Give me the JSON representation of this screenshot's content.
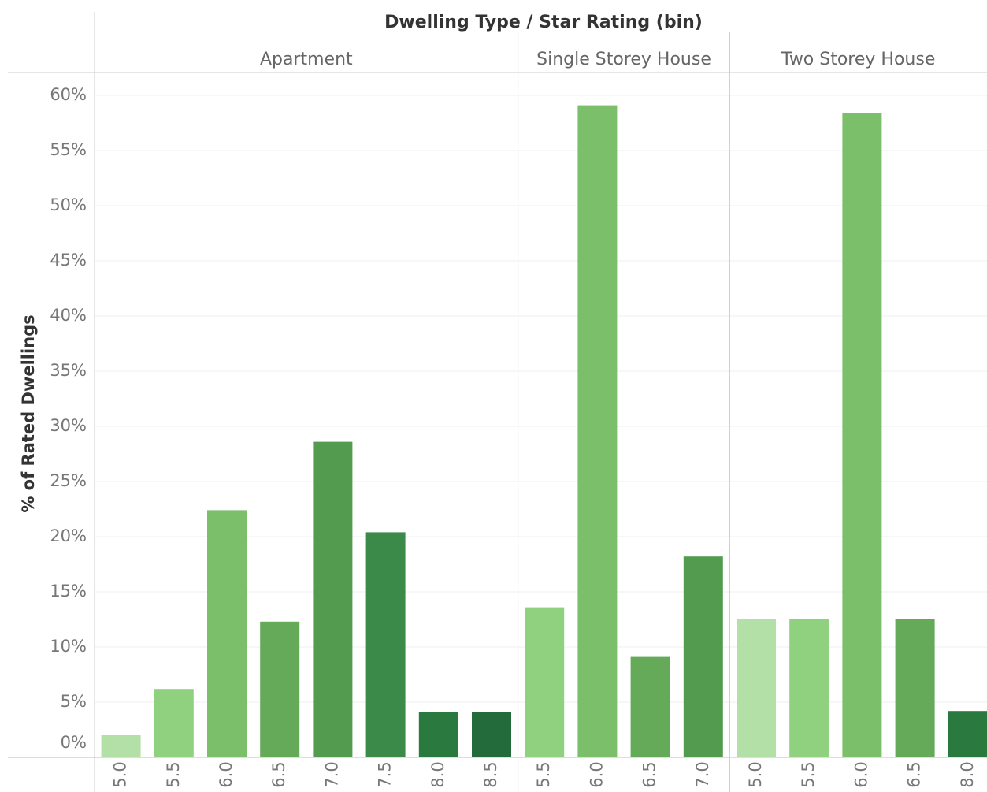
{
  "chart_data": {
    "type": "bar",
    "title": "Dwelling Type / Star Rating (bin)",
    "y_label": "% of Rated Dwellings",
    "ylim": [
      0,
      62
    ],
    "yticks": [
      {
        "value": 0,
        "label": "0%"
      },
      {
        "value": 5,
        "label": "5%"
      },
      {
        "value": 10,
        "label": "10%"
      },
      {
        "value": 15,
        "label": "15%"
      },
      {
        "value": 20,
        "label": "20%"
      },
      {
        "value": 25,
        "label": "25%"
      },
      {
        "value": 30,
        "label": "30%"
      },
      {
        "value": 35,
        "label": "35%"
      },
      {
        "value": 40,
        "label": "40%"
      },
      {
        "value": 45,
        "label": "45%"
      },
      {
        "value": 50,
        "label": "50%"
      },
      {
        "value": 55,
        "label": "55%"
      },
      {
        "value": 60,
        "label": "60%"
      }
    ],
    "grid": true,
    "panels": [
      {
        "name": "Apartment",
        "categories": [
          "5.0",
          "5.5",
          "6.0",
          "6.5",
          "7.0",
          "7.5",
          "8.0",
          "8.5"
        ],
        "values": [
          2.0,
          6.2,
          22.4,
          12.3,
          28.6,
          20.4,
          4.1,
          4.1
        ],
        "colors": [
          "#b3e0a6",
          "#8fd17f",
          "#7bbf6a",
          "#64aa59",
          "#539c4f",
          "#3c8a4a",
          "#2a7a40",
          "#236b3b"
        ]
      },
      {
        "name": "Single Storey House",
        "categories": [
          "5.5",
          "6.0",
          "6.5",
          "7.0"
        ],
        "values": [
          13.6,
          59.1,
          9.1,
          18.2
        ],
        "colors": [
          "#8fd17f",
          "#7bbf6a",
          "#64aa59",
          "#539c4f"
        ]
      },
      {
        "name": "Two Storey House",
        "categories": [
          "5.0",
          "5.5",
          "6.0",
          "6.5",
          "8.0"
        ],
        "values": [
          12.5,
          12.5,
          58.4,
          12.5,
          4.2
        ],
        "colors": [
          "#b3e0a6",
          "#8fd17f",
          "#7bbf6a",
          "#64aa59",
          "#2a7a40"
        ]
      }
    ]
  }
}
